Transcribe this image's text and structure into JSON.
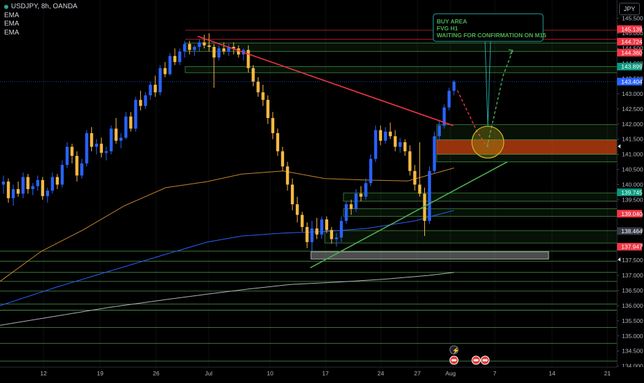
{
  "symbol": "USDJPY, 8h, OANDA",
  "indicators": [
    "EMA",
    "EMA",
    "EMA"
  ],
  "currency": "JPY",
  "colors": {
    "bg": "#000000",
    "up": "#2962ff",
    "down": "#f5b942",
    "trend_red": "#f23645",
    "trend_green": "#4caf50",
    "ema_short": "#c8852a",
    "ema_mid": "#2962ff",
    "ema_long": "#b0b3ba",
    "fvg_orange": "#c94410",
    "zone_green": "#2e6b2e"
  },
  "annotation": {
    "lines": [
      "BUY AREA",
      "FVG H1",
      "WAITING FOR CONFIRMATION ON M15"
    ]
  },
  "chart_data": {
    "type": "candlestick",
    "x_ticks": [
      "12",
      "19",
      "26",
      "Jul",
      "10",
      "17",
      "24",
      "27",
      "Aug",
      "7",
      "14",
      "21"
    ],
    "y_ticks": [
      "145.500",
      "145.000",
      "144.500",
      "144.000",
      "143.500",
      "143.000",
      "142.500",
      "142.000",
      "141.500",
      "141.000",
      "140.500",
      "140.000",
      "139.500",
      "139.000",
      "138.500",
      "138.000",
      "137.500",
      "137.000",
      "136.500",
      "136.000",
      "135.500",
      "135.000",
      "134.500",
      "134.000"
    ],
    "y_range": [
      133.9,
      146.1
    ],
    "price_labels": [
      {
        "text": "145.139",
        "price": 145.139,
        "color": "#f23645"
      },
      {
        "text": "144.724",
        "price": 144.724,
        "color": "#f23645"
      },
      {
        "text": "144.360",
        "price": 144.36,
        "color": "#f23645"
      },
      {
        "text": "143.899",
        "price": 143.899,
        "color": "#089981"
      },
      {
        "text": "143.404",
        "price": 143.404,
        "color": "#2962ff"
      },
      {
        "text": "139.745",
        "price": 139.745,
        "color": "#089981"
      },
      {
        "text": "139.040",
        "price": 139.04,
        "color": "#f23645"
      },
      {
        "text": "138.464",
        "price": 138.464,
        "color": "#363a45"
      },
      {
        "text": "137.947",
        "price": 137.947,
        "color": "#f23645"
      }
    ],
    "candles": [
      [
        140.0,
        140.3,
        139.7,
        140.1
      ],
      [
        140.1,
        140.2,
        139.4,
        139.55
      ],
      [
        139.55,
        140.0,
        139.3,
        139.85
      ],
      [
        139.85,
        140.1,
        139.6,
        139.7
      ],
      [
        139.7,
        140.4,
        139.55,
        140.25
      ],
      [
        140.25,
        140.35,
        139.7,
        139.85
      ],
      [
        139.85,
        140.05,
        139.65,
        139.95
      ],
      [
        139.95,
        140.3,
        139.8,
        140.15
      ],
      [
        140.15,
        140.25,
        139.5,
        139.62
      ],
      [
        139.62,
        139.9,
        139.4,
        139.8
      ],
      [
        139.8,
        140.4,
        139.7,
        140.25
      ],
      [
        140.25,
        140.35,
        139.85,
        140.0
      ],
      [
        140.0,
        140.8,
        139.9,
        140.65
      ],
      [
        140.65,
        141.4,
        140.55,
        141.25
      ],
      [
        141.25,
        141.35,
        140.7,
        140.95
      ],
      [
        140.95,
        141.1,
        140.1,
        140.3
      ],
      [
        140.3,
        140.85,
        140.2,
        140.7
      ],
      [
        140.7,
        141.8,
        140.6,
        141.7
      ],
      [
        141.7,
        141.9,
        141.1,
        141.25
      ],
      [
        141.25,
        141.5,
        141.0,
        141.35
      ],
      [
        141.35,
        141.55,
        140.9,
        141.05
      ],
      [
        141.05,
        141.25,
        140.8,
        141.1
      ],
      [
        141.1,
        141.95,
        141.0,
        141.85
      ],
      [
        141.85,
        142.2,
        141.35,
        141.45
      ],
      [
        141.45,
        141.7,
        141.2,
        141.55
      ],
      [
        141.55,
        142.4,
        141.5,
        142.25
      ],
      [
        142.25,
        142.4,
        141.75,
        141.85
      ],
      [
        141.85,
        142.9,
        141.75,
        142.8
      ],
      [
        142.8,
        143.1,
        142.45,
        142.6
      ],
      [
        142.6,
        143.05,
        142.5,
        142.95
      ],
      [
        142.95,
        143.4,
        142.8,
        143.3
      ],
      [
        143.3,
        143.6,
        142.9,
        143.05
      ],
      [
        143.05,
        143.95,
        142.95,
        143.85
      ],
      [
        143.85,
        144.05,
        143.55,
        143.65
      ],
      [
        143.65,
        144.35,
        143.6,
        144.25
      ],
      [
        144.25,
        144.5,
        143.95,
        144.05
      ],
      [
        144.05,
        144.5,
        143.95,
        144.4
      ],
      [
        144.4,
        144.75,
        144.2,
        144.65
      ],
      [
        144.65,
        144.75,
        144.3,
        144.45
      ],
      [
        144.45,
        144.6,
        144.25,
        144.55
      ],
      [
        144.55,
        144.8,
        144.4,
        144.7
      ],
      [
        144.7,
        144.95,
        144.5,
        144.6
      ],
      [
        144.6,
        145.0,
        144.4,
        144.55
      ],
      [
        144.55,
        144.65,
        143.2,
        144.2
      ],
      [
        144.2,
        144.6,
        144.1,
        144.5
      ],
      [
        144.5,
        144.7,
        144.3,
        144.4
      ],
      [
        144.4,
        144.65,
        144.25,
        144.55
      ],
      [
        144.55,
        144.7,
        144.3,
        144.5
      ],
      [
        144.5,
        144.6,
        144.2,
        144.3
      ],
      [
        144.3,
        144.5,
        144.1,
        144.45
      ],
      [
        144.45,
        144.6,
        143.7,
        143.85
      ],
      [
        143.85,
        143.95,
        143.25,
        143.4
      ],
      [
        143.4,
        143.55,
        142.9,
        143.05
      ],
      [
        143.05,
        143.3,
        142.6,
        142.8
      ],
      [
        142.8,
        142.95,
        142.0,
        142.2
      ],
      [
        142.2,
        142.4,
        141.5,
        141.7
      ],
      [
        141.7,
        141.85,
        140.95,
        141.1
      ],
      [
        141.1,
        141.25,
        140.45,
        140.6
      ],
      [
        140.6,
        140.75,
        139.8,
        140.0
      ],
      [
        140.0,
        140.2,
        139.15,
        139.35
      ],
      [
        139.35,
        139.6,
        138.75,
        139.0
      ],
      [
        139.0,
        139.1,
        138.45,
        138.6
      ],
      [
        138.6,
        138.75,
        137.9,
        138.1
      ],
      [
        138.1,
        138.8,
        137.8,
        138.55
      ],
      [
        138.55,
        138.9,
        138.2,
        138.35
      ],
      [
        138.35,
        138.95,
        138.2,
        138.85
      ],
      [
        138.85,
        138.95,
        138.4,
        138.5
      ],
      [
        138.5,
        138.6,
        138.05,
        138.2
      ],
      [
        138.2,
        138.4,
        137.95,
        138.25
      ],
      [
        138.25,
        138.95,
        138.1,
        138.8
      ],
      [
        138.8,
        139.45,
        138.7,
        139.35
      ],
      [
        139.35,
        139.5,
        139.0,
        139.2
      ],
      [
        139.2,
        139.85,
        139.1,
        139.7
      ],
      [
        139.7,
        139.95,
        139.45,
        139.6
      ],
      [
        139.6,
        140.2,
        139.5,
        140.05
      ],
      [
        140.05,
        141.0,
        139.95,
        140.85
      ],
      [
        140.85,
        141.95,
        140.75,
        141.8
      ],
      [
        141.8,
        141.95,
        141.3,
        141.45
      ],
      [
        141.45,
        141.9,
        141.35,
        141.75
      ],
      [
        141.75,
        142.05,
        141.5,
        141.6
      ],
      [
        141.6,
        141.8,
        141.1,
        141.25
      ],
      [
        141.25,
        141.55,
        141.05,
        141.4
      ],
      [
        141.4,
        141.5,
        140.95,
        141.1
      ],
      [
        141.1,
        141.3,
        140.3,
        140.45
      ],
      [
        140.45,
        140.65,
        139.8,
        140.0
      ],
      [
        140.0,
        141.4,
        139.6,
        139.7
      ],
      [
        139.7,
        139.9,
        138.3,
        138.8
      ],
      [
        138.8,
        140.6,
        138.7,
        140.45
      ],
      [
        140.45,
        141.75,
        140.35,
        141.6
      ],
      [
        141.6,
        142.1,
        141.45,
        141.95
      ],
      [
        141.95,
        142.65,
        141.85,
        142.55
      ],
      [
        142.55,
        143.2,
        142.45,
        143.1
      ],
      [
        143.1,
        143.45,
        142.95,
        143.4
      ]
    ],
    "ema_short": [
      [
        0,
        136.8
      ],
      [
        60,
        137.8
      ],
      [
        120,
        138.5
      ],
      [
        180,
        139.3
      ],
      [
        240,
        139.9
      ],
      [
        300,
        140.1
      ],
      [
        350,
        140.35
      ],
      [
        410,
        140.45
      ],
      [
        470,
        140.2
      ],
      [
        530,
        140.15
      ],
      [
        590,
        140.12
      ],
      [
        657,
        140.55
      ]
    ],
    "ema_mid": [
      [
        0,
        136.0
      ],
      [
        80,
        136.6
      ],
      [
        160,
        137.15
      ],
      [
        240,
        137.7
      ],
      [
        300,
        138.1
      ],
      [
        350,
        138.3
      ],
      [
        410,
        138.4
      ],
      [
        470,
        138.45
      ],
      [
        530,
        138.55
      ],
      [
        600,
        138.8
      ],
      [
        657,
        139.15
      ]
    ],
    "ema_long": [
      [
        0,
        135.35
      ],
      [
        80,
        135.65
      ],
      [
        160,
        135.95
      ],
      [
        240,
        136.2
      ],
      [
        300,
        136.38
      ],
      [
        360,
        136.55
      ],
      [
        420,
        136.7
      ],
      [
        490,
        136.78
      ],
      [
        560,
        136.88
      ],
      [
        620,
        137.0
      ],
      [
        657,
        137.1
      ]
    ],
    "trendlines": [
      {
        "color": "red",
        "from": [
          286,
          144.9
        ],
        "to": [
          656,
          141.95
        ]
      },
      {
        "color": "green",
        "from": [
          449,
          137.25
        ],
        "to": [
          734,
          140.75
        ]
      }
    ],
    "zones": [
      {
        "color": "orange",
        "from": 141.0,
        "to": 141.48,
        "x": 632
      },
      {
        "color": "green",
        "from": 141.48,
        "to": 141.98,
        "x": 632
      },
      {
        "color": "green",
        "from": 140.75,
        "to": 141.0,
        "x": 632
      },
      {
        "color": "green",
        "from": 144.4,
        "to": 144.68,
        "x": 268
      },
      {
        "color": "green",
        "from": 143.7,
        "to": 143.9,
        "x": 268
      },
      {
        "color": "green",
        "from": 139.45,
        "to": 139.72,
        "x": 497
      },
      {
        "color": "green",
        "from": 138.95,
        "to": 139.2,
        "x": 497
      },
      {
        "color": "green",
        "from": 138.07,
        "to": 138.48,
        "x": 470
      },
      {
        "color": "gray",
        "from": 137.54,
        "to": 137.78,
        "x": 450,
        "x2": 794
      }
    ],
    "h_levels": [
      137.8,
      137.47,
      137.1,
      136.8,
      136.48,
      136.05,
      135.85,
      135.28,
      134.75,
      134.17,
      145.1,
      144.8
    ]
  }
}
